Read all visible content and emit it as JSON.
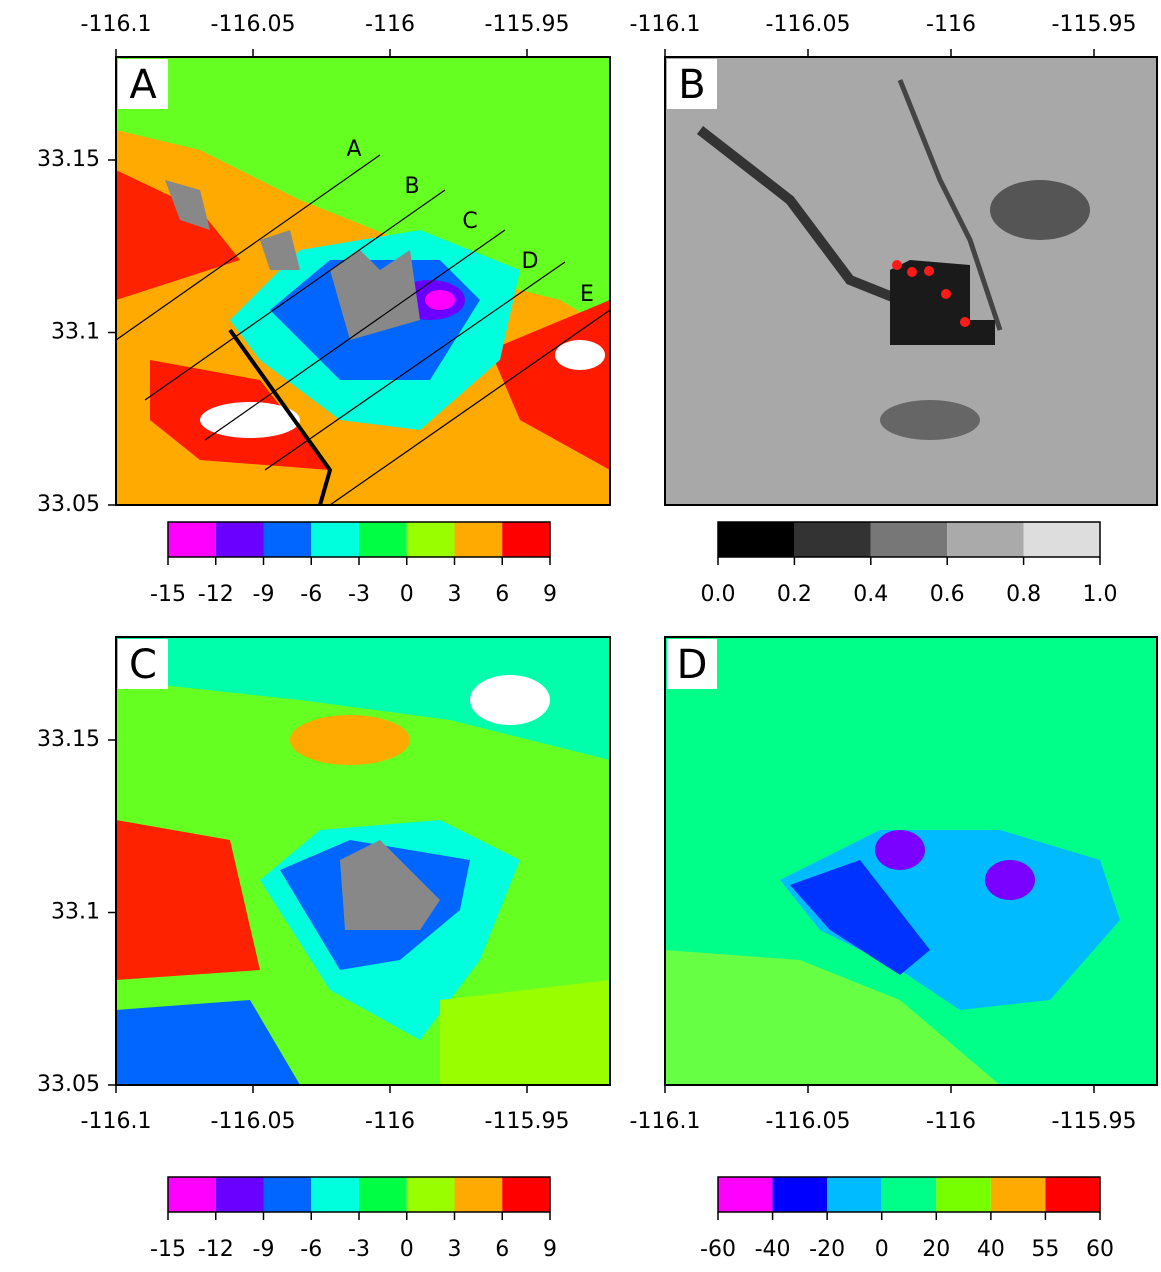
{
  "panels": [
    {
      "label": "A"
    },
    {
      "label": "B"
    },
    {
      "label": "C"
    },
    {
      "label": "D"
    }
  ],
  "x_ticks": [
    -116.1,
    -116.05,
    -116,
    -115.95
  ],
  "y_ticks": [
    33.15,
    33.1,
    33.05
  ],
  "profile_labels": [
    "A",
    "B",
    "C",
    "D",
    "E"
  ],
  "colorbars": [
    {
      "colors": [
        "#ff00ff",
        "#6a00ff",
        "#0066ff",
        "#00ffdd",
        "#00ff44",
        "#99ff00",
        "#ffaa00",
        "#ff0000"
      ],
      "labels": [
        -15,
        -12,
        -9,
        -6,
        -3,
        0,
        3,
        6,
        9
      ]
    },
    {
      "colors": [
        "#000000",
        "#333333",
        "#777777",
        "#aaaaaa",
        "#dddddd"
      ],
      "labels": [
        "0.0",
        "0.2",
        "0.4",
        "0.6",
        "0.8",
        "1.0"
      ]
    },
    {
      "colors": [
        "#ff00ff",
        "#6a00ff",
        "#0066ff",
        "#00ffdd",
        "#00ff44",
        "#99ff00",
        "#ffaa00",
        "#ff0000"
      ],
      "labels": [
        -15,
        -12,
        -9,
        -6,
        -3,
        0,
        3,
        6,
        9
      ]
    },
    {
      "colors": [
        "#ff00ff",
        "#0000ff",
        "#00bbff",
        "#00ff88",
        "#77ff00",
        "#ffaa00",
        "#ff0000"
      ],
      "labels": [
        -60,
        -40,
        -20,
        0,
        20,
        40,
        55,
        60
      ]
    }
  ]
}
